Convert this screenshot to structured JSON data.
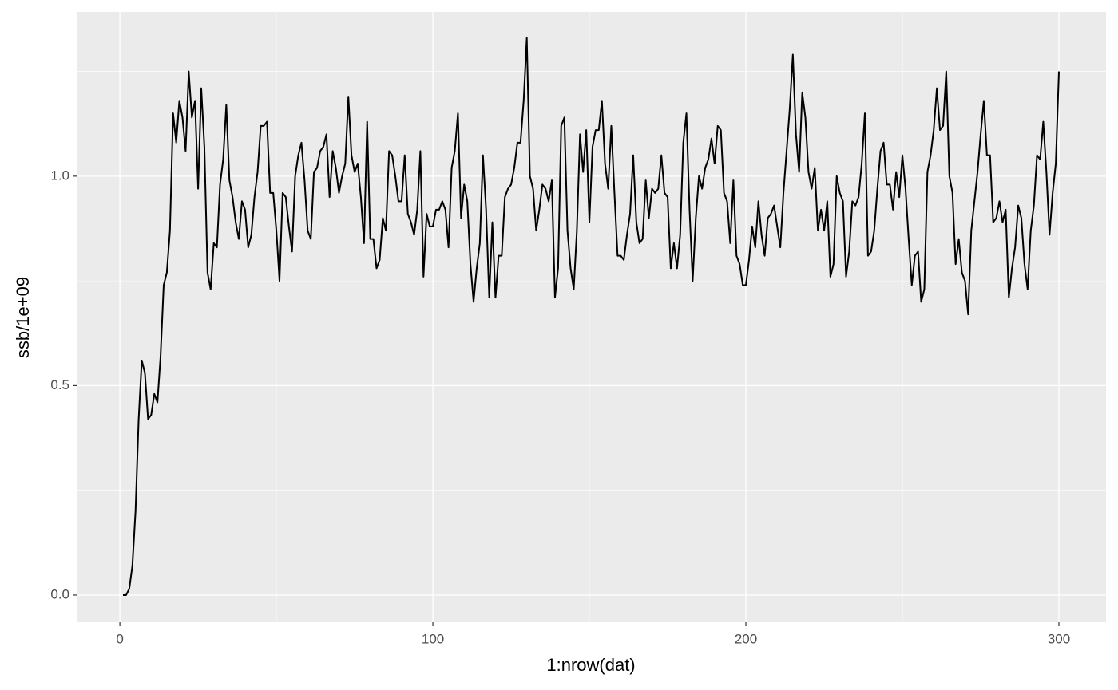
{
  "chart_data": {
    "type": "line",
    "x_label": "1:nrow(dat)",
    "y_label": "ssb/1e+09",
    "color": "#000000",
    "x": [
      1,
      2,
      3,
      4,
      5,
      6,
      7,
      8,
      9,
      10,
      11,
      12,
      13,
      14,
      15,
      16,
      17,
      18,
      19,
      20,
      21,
      22,
      23,
      24,
      25,
      26,
      27,
      28,
      29,
      30,
      31,
      32,
      33,
      34,
      35,
      36,
      37,
      38,
      39,
      40,
      41,
      42,
      43,
      44,
      45,
      46,
      47,
      48,
      49,
      50,
      51,
      52,
      53,
      54,
      55,
      56,
      57,
      58,
      59,
      60,
      61,
      62,
      63,
      64,
      65,
      66,
      67,
      68,
      69,
      70,
      71,
      72,
      73,
      74,
      75,
      76,
      77,
      78,
      79,
      80,
      81,
      82,
      83,
      84,
      85,
      86,
      87,
      88,
      89,
      90,
      91,
      92,
      93,
      94,
      95,
      96,
      97,
      98,
      99,
      100,
      101,
      102,
      103,
      104,
      105,
      106,
      107,
      108,
      109,
      110,
      111,
      112,
      113,
      114,
      115,
      116,
      117,
      118,
      119,
      120,
      121,
      122,
      123,
      124,
      125,
      126,
      127,
      128,
      129,
      130,
      131,
      132,
      133,
      134,
      135,
      136,
      137,
      138,
      139,
      140,
      141,
      142,
      143,
      144,
      145,
      146,
      147,
      148,
      149,
      150,
      151,
      152,
      153,
      154,
      155,
      156,
      157,
      158,
      159,
      160,
      161,
      162,
      163,
      164,
      165,
      166,
      167,
      168,
      169,
      170,
      171,
      172,
      173,
      174,
      175,
      176,
      177,
      178,
      179,
      180,
      181,
      182,
      183,
      184,
      185,
      186,
      187,
      188,
      189,
      190,
      191,
      192,
      193,
      194,
      195,
      196,
      197,
      198,
      199,
      200,
      201,
      202,
      203,
      204,
      205,
      206,
      207,
      208,
      209,
      210,
      211,
      212,
      213,
      214,
      215,
      216,
      217,
      218,
      219,
      220,
      221,
      222,
      223,
      224,
      225,
      226,
      227,
      228,
      229,
      230,
      231,
      232,
      233,
      234,
      235,
      236,
      237,
      238,
      239,
      240,
      241,
      242,
      243,
      244,
      245,
      246,
      247,
      248,
      249,
      250,
      251,
      252,
      253,
      254,
      255,
      256,
      257,
      258,
      259,
      260,
      261,
      262,
      263,
      264,
      265,
      266,
      267,
      268,
      269,
      270,
      271,
      272,
      273,
      274,
      275,
      276,
      277,
      278,
      279,
      280,
      281,
      282,
      283,
      284,
      285,
      286,
      287,
      288,
      289,
      290,
      291,
      292,
      293,
      294,
      295,
      296,
      297,
      298,
      299,
      300
    ],
    "values": [
      0,
      0,
      0.015,
      0.07,
      0.2,
      0.42,
      0.56,
      0.53,
      0.42,
      0.43,
      0.48,
      0.46,
      0.57,
      0.74,
      0.77,
      0.87,
      1.15,
      1.08,
      1.18,
      1.14,
      1.06,
      1.25,
      1.14,
      1.18,
      0.97,
      1.21,
      1.07,
      0.77,
      0.73,
      0.84,
      0.83,
      0.98,
      1.04,
      1.17,
      0.99,
      0.95,
      0.89,
      0.85,
      0.94,
      0.92,
      0.83,
      0.86,
      0.95,
      1.01,
      1.12,
      1.12,
      1.13,
      0.96,
      0.96,
      0.87,
      0.75,
      0.96,
      0.95,
      0.88,
      0.82,
      1.0,
      1.05,
      1.08,
      0.99,
      0.87,
      0.85,
      1.01,
      1.02,
      1.06,
      1.07,
      1.1,
      0.95,
      1.06,
      1.02,
      0.96,
      1.0,
      1.03,
      1.19,
      1.05,
      1.01,
      1.03,
      0.95,
      0.84,
      1.13,
      0.85,
      0.85,
      0.78,
      0.8,
      0.9,
      0.87,
      1.06,
      1.05,
      1.0,
      0.94,
      0.94,
      1.05,
      0.91,
      0.89,
      0.86,
      0.92,
      1.06,
      0.76,
      0.91,
      0.88,
      0.88,
      0.92,
      0.92,
      0.94,
      0.92,
      0.83,
      1.02,
      1.06,
      1.15,
      0.9,
      0.98,
      0.94,
      0.79,
      0.7,
      0.78,
      0.84,
      1.05,
      0.92,
      0.71,
      0.89,
      0.71,
      0.81,
      0.81,
      0.95,
      0.97,
      0.98,
      1.02,
      1.08,
      1.08,
      1.18,
      1.33,
      1.0,
      0.97,
      0.87,
      0.92,
      0.98,
      0.97,
      0.94,
      0.99,
      0.71,
      0.78,
      1.12,
      1.14,
      0.87,
      0.78,
      0.73,
      0.87,
      1.1,
      1.01,
      1.11,
      0.89,
      1.07,
      1.11,
      1.11,
      1.18,
      1.03,
      0.97,
      1.12,
      0.96,
      0.81,
      0.81,
      0.8,
      0.86,
      0.91,
      1.05,
      0.89,
      0.84,
      0.85,
      0.99,
      0.9,
      0.97,
      0.96,
      0.97,
      1.05,
      0.96,
      0.95,
      0.78,
      0.84,
      0.78,
      0.86,
      1.08,
      1.15,
      0.92,
      0.75,
      0.9,
      1.0,
      0.97,
      1.02,
      1.04,
      1.09,
      1.03,
      1.12,
      1.11,
      0.96,
      0.94,
      0.84,
      0.99,
      0.81,
      0.79,
      0.74,
      0.74,
      0.8,
      0.88,
      0.83,
      0.94,
      0.86,
      0.81,
      0.9,
      0.91,
      0.93,
      0.88,
      0.83,
      0.96,
      1.06,
      1.16,
      1.29,
      1.1,
      1.01,
      1.2,
      1.14,
      1.01,
      0.97,
      1.02,
      0.87,
      0.92,
      0.87,
      0.94,
      0.76,
      0.79,
      1.0,
      0.96,
      0.94,
      0.76,
      0.82,
      0.94,
      0.93,
      0.95,
      1.03,
      1.15,
      0.81,
      0.82,
      0.87,
      0.97,
      1.06,
      1.08,
      0.98,
      0.98,
      0.92,
      1.01,
      0.95,
      1.05,
      0.97,
      0.85,
      0.74,
      0.81,
      0.82,
      0.7,
      0.73,
      1.01,
      1.05,
      1.11,
      1.21,
      1.11,
      1.12,
      1.25,
      1.0,
      0.96,
      0.79,
      0.85,
      0.77,
      0.75,
      0.67,
      0.87,
      0.94,
      1.01,
      1.1,
      1.18,
      1.05,
      1.05,
      0.89,
      0.9,
      0.94,
      0.89,
      0.92,
      0.71,
      0.78,
      0.83,
      0.93,
      0.9,
      0.79,
      0.73,
      0.87,
      0.93,
      1.05,
      1.04,
      1.13,
      1.01,
      0.86,
      0.96,
      1.03,
      1.25
    ],
    "xlim": [
      -13.8,
      315.05
    ],
    "ylim": [
      -0.0648,
      1.392
    ],
    "xticks": [
      0,
      100,
      200,
      300
    ],
    "yticks": [
      {
        "value": 0,
        "label": "0.0"
      },
      {
        "value": 0.5,
        "label": "0.5"
      },
      {
        "value": 1,
        "label": "1.0"
      }
    ],
    "x_minor_ticks": [
      50,
      150,
      250
    ],
    "y_minor_ticks": [
      0.25,
      0.75,
      1.25
    ],
    "grid": true
  }
}
